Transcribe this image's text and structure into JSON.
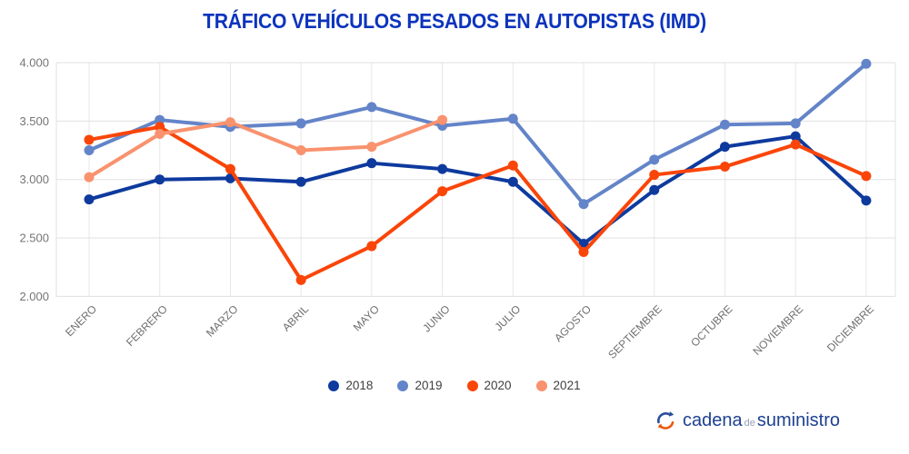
{
  "title": "TRÁFICO VEHÍCULOS PESADOS EN AUTOPISTAS (IMD)",
  "chart_data": {
    "type": "line",
    "categories": [
      "ENERO",
      "FEBRERO",
      "MARZO",
      "ABRIL",
      "MAYO",
      "JUNIO",
      "JULIO",
      "AGOSTO",
      "SEPTIEMBRE",
      "OCTUBRE",
      "NOVIEMBRE",
      "DICIEMBRE"
    ],
    "series": [
      {
        "name": "2018",
        "color": "#0e3a9e",
        "values": [
          2830,
          3000,
          3010,
          2980,
          3140,
          3090,
          2980,
          2450,
          2910,
          3280,
          3370,
          2820
        ]
      },
      {
        "name": "2019",
        "color": "#6384c8",
        "values": [
          3250,
          3510,
          3450,
          3480,
          3620,
          3460,
          3520,
          2790,
          3170,
          3470,
          3480,
          3990
        ]
      },
      {
        "name": "2020",
        "color": "#fa4509",
        "values": [
          3340,
          3450,
          3090,
          2140,
          2430,
          2900,
          3120,
          2380,
          3040,
          3110,
          3300,
          3030
        ]
      },
      {
        "name": "2021",
        "color": "#f9926e",
        "values": [
          3020,
          3390,
          3490,
          3250,
          3280,
          3510,
          null,
          null,
          null,
          null,
          null,
          null
        ]
      }
    ],
    "title": "TRÁFICO VEHÍCULOS PESADOS EN AUTOPISTAS (IMD)",
    "xlabel": "",
    "ylabel": "",
    "ylim": [
      2000,
      4000
    ],
    "yticks": [
      4000,
      3500,
      3000,
      2500,
      2000
    ],
    "grid": true,
    "legend_position": "bottom",
    "x_labels_rotated_45deg": true
  },
  "styles": {
    "title_color": "#0d34bd",
    "gridline_color": "#e0e0e0",
    "axis_label_color": "#757575",
    "legend_text_color": "#3f3f3f",
    "logo_blue": "#1d4091",
    "logo_orange": "#ea5a12"
  },
  "footer": {
    "word1": "cadena",
    "word2": "de",
    "word3": "suministro",
    "icon": "sync-arrows-circle-icon"
  }
}
